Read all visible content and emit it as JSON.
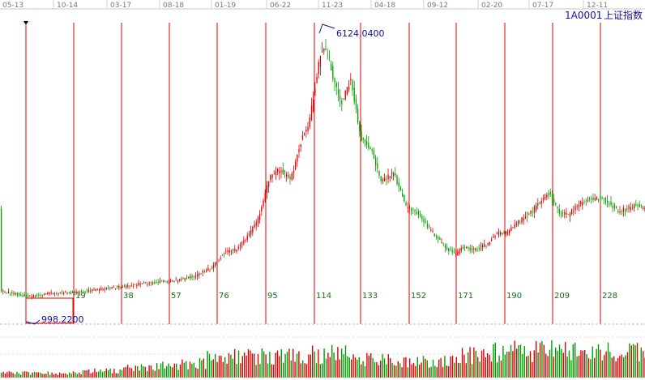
{
  "header": {
    "symbol_code": "1A0001",
    "symbol_name": "上证指数",
    "date_labels": [
      "05-13",
      "10-14",
      "03-17",
      "08-18",
      "01-19",
      "06-22",
      "11-23",
      "04-18",
      "09-12",
      "02-20",
      "07-17",
      "12-11"
    ]
  },
  "annotations": {
    "high_label": "6124.0400",
    "low_label": "998.2200"
  },
  "cycle_labels": [
    "19",
    "38",
    "57",
    "76",
    "95",
    "114",
    "133",
    "152",
    "171",
    "190",
    "209",
    "228"
  ],
  "colors": {
    "up": "#e00000",
    "down": "#00a000",
    "cycle_line": "#e00000",
    "annotation": "#1010a0",
    "grid": "#bbbbbb"
  },
  "chart_data": {
    "type": "candlestick",
    "title": "1A0001 上证指数",
    "x_tick_labels": [
      "05-13",
      "10-14",
      "03-17",
      "08-18",
      "01-19",
      "06-22",
      "11-23",
      "04-18",
      "09-12",
      "02-20",
      "07-17",
      "12-11"
    ],
    "cycle_step_bars": 19,
    "series_close_approx": [
      {
        "label": "05-13",
        "value": 1150
      },
      {
        "label": "10-14",
        "value": 1150
      },
      {
        "label": "03-17",
        "value": 1260
      },
      {
        "label": "08-18",
        "value": 1600
      },
      {
        "label": "01-19",
        "value": 2700
      },
      {
        "label": "06-22",
        "value": 4000
      },
      {
        "label": "11-23",
        "value": 5300
      },
      {
        "label": "04-18",
        "value": 3500
      },
      {
        "label": "09-12",
        "value": 2100
      },
      {
        "label": "02-20",
        "value": 2000
      },
      {
        "label": "07-17",
        "value": 2900
      },
      {
        "label": "12-11",
        "value": 3100
      }
    ],
    "high": 6124.04,
    "low": 998.22,
    "has_volume_pane": true
  }
}
